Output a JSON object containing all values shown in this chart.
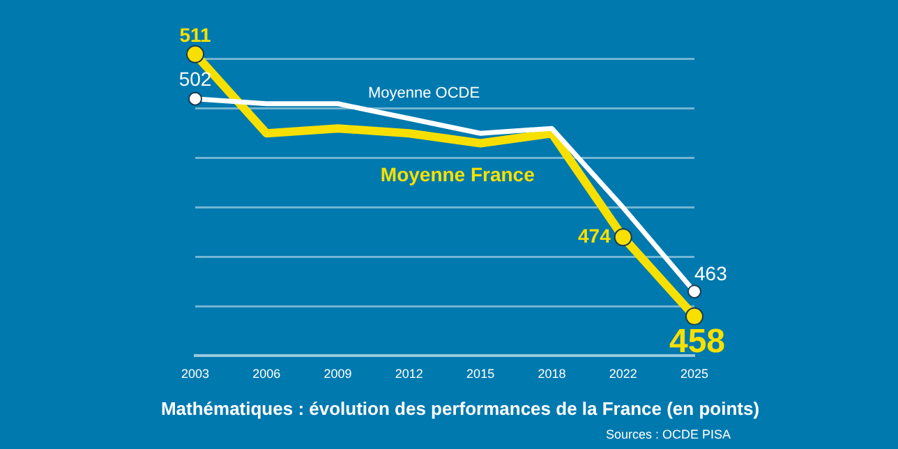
{
  "chart_data": {
    "type": "line",
    "title": "Mathématiques : évolution des performances de la France (en points)",
    "categories": [
      "2003",
      "2006",
      "2009",
      "2012",
      "2015",
      "2018",
      "2022",
      "2025"
    ],
    "series": [
      {
        "name": "Moyenne OCDE",
        "color": "#ffffff",
        "values": [
          502,
          501,
          501,
          498,
          495,
          496,
          480,
          463
        ],
        "value_labels": [
          "502",
          null,
          null,
          null,
          null,
          null,
          null,
          "463"
        ]
      },
      {
        "name": "Moyenne France",
        "color": "#f7e000",
        "values": [
          511,
          495,
          496,
          495,
          493,
          495,
          474,
          458
        ],
        "value_labels": [
          "511",
          null,
          null,
          null,
          null,
          null,
          "474",
          "458"
        ]
      }
    ],
    "yticks": [
      {
        "value": 460,
        "label": null
      },
      {
        "value": 470,
        "label": null
      },
      {
        "value": 480,
        "label": null
      },
      {
        "value": 490,
        "label": null
      },
      {
        "value": 500,
        "label": null
      },
      {
        "value": 510,
        "label": null
      }
    ],
    "tick_labels": "x",
    "grid": "y",
    "legend": false,
    "line_style": "solid",
    "annotations": [
      "Sources : OCDE PISA"
    ]
  }
}
